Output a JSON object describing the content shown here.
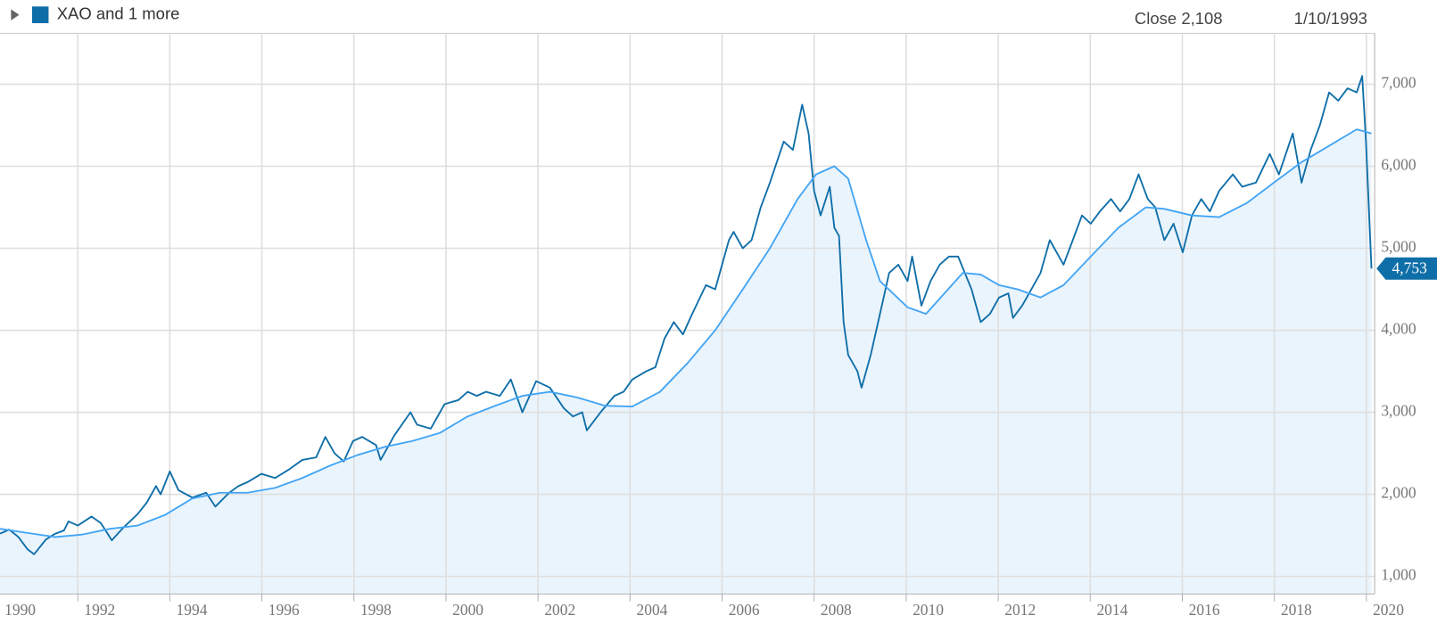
{
  "chart_data": {
    "type": "line",
    "legend": "XAO and 1 more",
    "readout": {
      "close": "Close 2,108",
      "date": "1/10/1993"
    },
    "last_value_label": {
      "value": 4753,
      "label": "4,753"
    },
    "xlim": [
      1990.31,
      2020.18
    ],
    "xticks": [
      1990,
      1992,
      1994,
      1996,
      1998,
      2000,
      2002,
      2004,
      2006,
      2008,
      2010,
      2012,
      2014,
      2016,
      2018,
      2020
    ],
    "ylim": [
      785,
      7620
    ],
    "yticks": [
      {
        "value": 1000,
        "label": "1,000"
      },
      {
        "value": 2000,
        "label": "2,000"
      },
      {
        "value": 3000,
        "label": "3,000"
      },
      {
        "value": 4000,
        "label": "4,000"
      },
      {
        "value": 5000,
        "label": "5,000"
      },
      {
        "value": 6000,
        "label": "6,000"
      },
      {
        "value": 7000,
        "label": "7,000"
      }
    ],
    "grid": true,
    "series": [
      {
        "color": "#0e6ea8",
        "x": [
          1990.31,
          1990.51,
          1990.71,
          1990.91,
          1991.05,
          1991.31,
          1991.51,
          1991.7,
          1991.8,
          1992.0,
          1992.3,
          1992.5,
          1992.74,
          1993.0,
          1993.3,
          1993.5,
          1993.7,
          1993.8,
          1994.0,
          1994.19,
          1994.49,
          1994.79,
          1994.99,
          1995.29,
          1995.49,
          1995.69,
          1995.99,
          1996.29,
          1996.58,
          1996.88,
          1997.18,
          1997.38,
          1997.58,
          1997.78,
          1997.98,
          1998.18,
          1998.48,
          1998.58,
          1998.88,
          1999.23,
          1999.37,
          1999.67,
          1999.97,
          2000.27,
          2000.47,
          2000.67,
          2000.87,
          2001.17,
          2001.41,
          2001.66,
          2001.96,
          2002.26,
          2002.56,
          2002.76,
          2002.96,
          2003.06,
          2003.36,
          2003.66,
          2003.86,
          2004.05,
          2004.35,
          2004.55,
          2004.75,
          2004.95,
          2005.15,
          2005.35,
          2005.65,
          2005.85,
          2006.05,
          2006.15,
          2006.25,
          2006.45,
          2006.64,
          2006.84,
          2007.04,
          2007.34,
          2007.54,
          2007.74,
          2007.88,
          2008.0,
          2008.14,
          2008.34,
          2008.44,
          2008.54,
          2008.64,
          2008.74,
          2008.94,
          2009.03,
          2009.23,
          2009.43,
          2009.63,
          2009.83,
          2010.03,
          2010.13,
          2010.33,
          2010.53,
          2010.73,
          2010.93,
          2011.13,
          2011.42,
          2011.62,
          2011.82,
          2012.02,
          2012.22,
          2012.32,
          2012.52,
          2012.72,
          2012.92,
          2013.12,
          2013.42,
          2013.62,
          2013.82,
          2014.01,
          2014.21,
          2014.45,
          2014.65,
          2014.85,
          2015.05,
          2015.25,
          2015.41,
          2015.61,
          2015.81,
          2016.01,
          2016.21,
          2016.41,
          2016.6,
          2016.8,
          2017.1,
          2017.3,
          2017.6,
          2017.9,
          2018.1,
          2018.4,
          2018.59,
          2018.79,
          2018.99,
          2019.19,
          2019.39,
          2019.59,
          2019.79,
          2019.91,
          2019.99,
          2020.11
        ],
        "values": [
          1520,
          1570,
          1480,
          1330,
          1270,
          1450,
          1520,
          1560,
          1670,
          1620,
          1730,
          1650,
          1440,
          1600,
          1760,
          1900,
          2100,
          2000,
          2280,
          2050,
          1960,
          2020,
          1850,
          2020,
          2100,
          2150,
          2250,
          2200,
          2300,
          2420,
          2450,
          2700,
          2500,
          2400,
          2650,
          2700,
          2600,
          2420,
          2720,
          3000,
          2850,
          2800,
          3100,
          3150,
          3250,
          3200,
          3250,
          3200,
          3400,
          3000,
          3380,
          3300,
          3050,
          2950,
          3000,
          2780,
          3000,
          3200,
          3250,
          3400,
          3500,
          3550,
          3900,
          4100,
          3950,
          4200,
          4550,
          4500,
          4900,
          5100,
          5200,
          5000,
          5100,
          5500,
          5800,
          6300,
          6200,
          6750,
          6400,
          5700,
          5400,
          5750,
          5250,
          5150,
          4100,
          3700,
          3500,
          3300,
          3700,
          4200,
          4700,
          4800,
          4600,
          4900,
          4300,
          4600,
          4800,
          4900,
          4900,
          4500,
          4100,
          4200,
          4400,
          4450,
          4150,
          4300,
          4500,
          4700,
          5100,
          4800,
          5100,
          5400,
          5300,
          5450,
          5600,
          5450,
          5600,
          5900,
          5600,
          5500,
          5100,
          5300,
          4950,
          5400,
          5600,
          5450,
          5700,
          5900,
          5750,
          5800,
          6150,
          5900,
          6400,
          5800,
          6200,
          6500,
          6900,
          6800,
          6950,
          6900,
          7100,
          6300,
          4753
        ]
      },
      {
        "color": "#42a5f5",
        "area": true,
        "area_color": "#eaf4fc",
        "x": [
          1990.31,
          1990.91,
          1991.51,
          1992.1,
          1992.7,
          1993.3,
          1993.9,
          1994.49,
          1995.09,
          1995.69,
          1996.29,
          1996.88,
          1997.48,
          1998.08,
          1998.68,
          1999.27,
          1999.87,
          2000.47,
          2001.07,
          2001.66,
          2002.26,
          2002.86,
          2003.46,
          2004.05,
          2004.65,
          2005.25,
          2005.85,
          2006.45,
          2007.04,
          2007.64,
          2008.04,
          2008.44,
          2008.74,
          2009.13,
          2009.43,
          2010.03,
          2010.43,
          2010.83,
          2011.23,
          2011.62,
          2012.02,
          2012.42,
          2012.92,
          2013.42,
          2014.01,
          2014.61,
          2015.21,
          2015.61,
          2016.21,
          2016.8,
          2017.4,
          2017.99,
          2018.59,
          2019.19,
          2019.79,
          2020.11
        ],
        "values": [
          1580,
          1530,
          1480,
          1510,
          1580,
          1620,
          1750,
          1950,
          2020,
          2020,
          2080,
          2200,
          2350,
          2480,
          2580,
          2650,
          2750,
          2950,
          3080,
          3200,
          3250,
          3180,
          3080,
          3070,
          3250,
          3600,
          4000,
          4500,
          5000,
          5600,
          5900,
          6000,
          5850,
          5100,
          4600,
          4280,
          4200,
          4450,
          4700,
          4680,
          4550,
          4500,
          4400,
          4550,
          4900,
          5250,
          5500,
          5480,
          5400,
          5380,
          5550,
          5800,
          6050,
          6250,
          6450,
          6400
        ]
      }
    ]
  }
}
